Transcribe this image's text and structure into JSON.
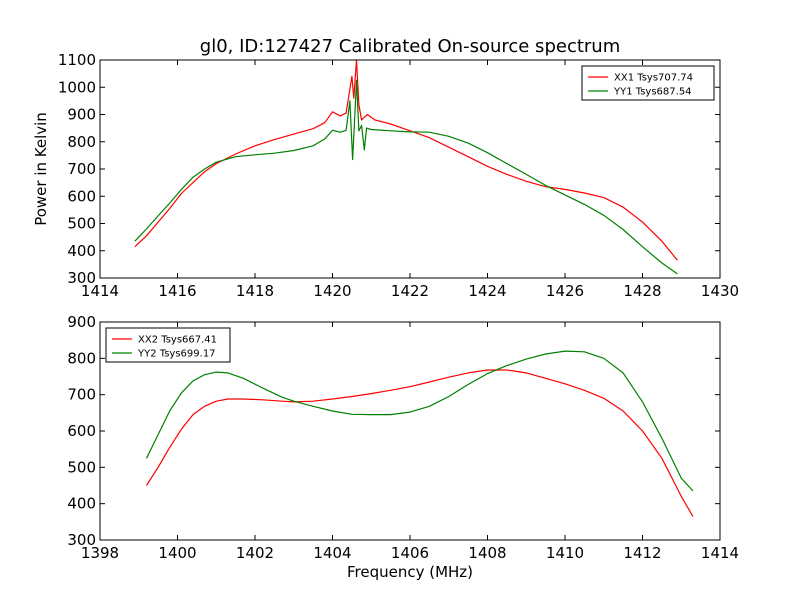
{
  "colors": {
    "red": "#ff0000",
    "green": "#008000",
    "frame": "#000000",
    "background": "#ffffff"
  },
  "chart_data": [
    {
      "type": "line",
      "title": "gl0, ID:127427 Calibrated On-source spectrum",
      "xlabel": "",
      "ylabel": "Power in Kelvin",
      "xlim": [
        1414,
        1430
      ],
      "ylim": [
        300,
        1100
      ],
      "xticks": [
        1414,
        1416,
        1418,
        1420,
        1422,
        1424,
        1426,
        1428,
        1430
      ],
      "yticks": [
        300,
        400,
        500,
        600,
        700,
        800,
        900,
        1000,
        1100
      ],
      "grid": false,
      "legend_position": "upper-right",
      "series": [
        {
          "name": "XX1 Tsys707.74",
          "color": "#ff0000",
          "points": [
            [
              1414.9,
              415
            ],
            [
              1415.2,
              455
            ],
            [
              1415.5,
              505
            ],
            [
              1415.8,
              555
            ],
            [
              1416.1,
              610
            ],
            [
              1416.4,
              650
            ],
            [
              1416.7,
              690
            ],
            [
              1417.0,
              720
            ],
            [
              1417.5,
              755
            ],
            [
              1418.0,
              785
            ],
            [
              1418.5,
              808
            ],
            [
              1419.0,
              828
            ],
            [
              1419.5,
              848
            ],
            [
              1419.8,
              870
            ],
            [
              1420.0,
              910
            ],
            [
              1420.2,
              895
            ],
            [
              1420.35,
              905
            ],
            [
              1420.5,
              1040
            ],
            [
              1420.55,
              960
            ],
            [
              1420.62,
              1100
            ],
            [
              1420.68,
              935
            ],
            [
              1420.75,
              880
            ],
            [
              1420.82,
              890
            ],
            [
              1420.9,
              900
            ],
            [
              1421.1,
              880
            ],
            [
              1421.5,
              865
            ],
            [
              1422.0,
              840
            ],
            [
              1422.5,
              815
            ],
            [
              1423.0,
              780
            ],
            [
              1423.5,
              745
            ],
            [
              1424.0,
              710
            ],
            [
              1424.5,
              680
            ],
            [
              1425.0,
              655
            ],
            [
              1425.5,
              635
            ],
            [
              1426.0,
              625
            ],
            [
              1426.5,
              612
            ],
            [
              1427.0,
              595
            ],
            [
              1427.5,
              560
            ],
            [
              1428.0,
              505
            ],
            [
              1428.5,
              435
            ],
            [
              1428.9,
              365
            ]
          ]
        },
        {
          "name": "YY1 Tsys687.54",
          "color": "#008000",
          "points": [
            [
              1414.9,
              435
            ],
            [
              1415.2,
              480
            ],
            [
              1415.5,
              528
            ],
            [
              1415.8,
              575
            ],
            [
              1416.1,
              625
            ],
            [
              1416.4,
              670
            ],
            [
              1416.7,
              700
            ],
            [
              1417.0,
              725
            ],
            [
              1417.5,
              745
            ],
            [
              1418.0,
              752
            ],
            [
              1418.5,
              758
            ],
            [
              1419.0,
              768
            ],
            [
              1419.5,
              785
            ],
            [
              1419.8,
              810
            ],
            [
              1420.0,
              842
            ],
            [
              1420.2,
              835
            ],
            [
              1420.35,
              842
            ],
            [
              1420.45,
              950
            ],
            [
              1420.52,
              735
            ],
            [
              1420.57,
              880
            ],
            [
              1420.62,
              1025
            ],
            [
              1420.68,
              840
            ],
            [
              1420.75,
              860
            ],
            [
              1420.82,
              770
            ],
            [
              1420.88,
              850
            ],
            [
              1421.0,
              845
            ],
            [
              1421.5,
              840
            ],
            [
              1422.0,
              836
            ],
            [
              1422.5,
              835
            ],
            [
              1423.0,
              820
            ],
            [
              1423.5,
              795
            ],
            [
              1424.0,
              760
            ],
            [
              1424.5,
              720
            ],
            [
              1425.0,
              680
            ],
            [
              1425.5,
              640
            ],
            [
              1426.0,
              605
            ],
            [
              1426.5,
              570
            ],
            [
              1427.0,
              530
            ],
            [
              1427.5,
              478
            ],
            [
              1428.0,
              415
            ],
            [
              1428.5,
              355
            ],
            [
              1428.9,
              315
            ]
          ]
        }
      ]
    },
    {
      "type": "line",
      "title": "",
      "xlabel": "Frequency (MHz)",
      "ylabel": "",
      "xlim": [
        1398,
        1414
      ],
      "ylim": [
        300,
        900
      ],
      "xticks": [
        1398,
        1400,
        1402,
        1404,
        1406,
        1408,
        1410,
        1412,
        1414
      ],
      "yticks": [
        300,
        400,
        500,
        600,
        700,
        800,
        900
      ],
      "grid": false,
      "legend_position": "upper-left",
      "series": [
        {
          "name": "XX2 Tsys667.41",
          "color": "#ff0000",
          "points": [
            [
              1399.2,
              450
            ],
            [
              1399.5,
              500
            ],
            [
              1399.8,
              555
            ],
            [
              1400.1,
              605
            ],
            [
              1400.4,
              645
            ],
            [
              1400.7,
              668
            ],
            [
              1401.0,
              682
            ],
            [
              1401.3,
              688
            ],
            [
              1401.7,
              688
            ],
            [
              1402.2,
              686
            ],
            [
              1402.7,
              682
            ],
            [
              1403.0,
              680
            ],
            [
              1403.5,
              682
            ],
            [
              1404.0,
              688
            ],
            [
              1404.5,
              695
            ],
            [
              1405.0,
              703
            ],
            [
              1405.5,
              712
            ],
            [
              1406.0,
              722
            ],
            [
              1406.5,
              735
            ],
            [
              1407.0,
              748
            ],
            [
              1407.5,
              760
            ],
            [
              1408.0,
              768
            ],
            [
              1408.5,
              768
            ],
            [
              1409.0,
              760
            ],
            [
              1409.5,
              745
            ],
            [
              1410.0,
              730
            ],
            [
              1410.5,
              712
            ],
            [
              1411.0,
              690
            ],
            [
              1411.5,
              655
            ],
            [
              1412.0,
              600
            ],
            [
              1412.5,
              525
            ],
            [
              1413.0,
              420
            ],
            [
              1413.3,
              365
            ]
          ]
        },
        {
          "name": "YY2 Tsys699.17",
          "color": "#008000",
          "points": [
            [
              1399.2,
              525
            ],
            [
              1399.5,
              590
            ],
            [
              1399.8,
              655
            ],
            [
              1400.1,
              705
            ],
            [
              1400.4,
              738
            ],
            [
              1400.7,
              755
            ],
            [
              1401.0,
              762
            ],
            [
              1401.3,
              760
            ],
            [
              1401.7,
              745
            ],
            [
              1402.2,
              718
            ],
            [
              1402.7,
              693
            ],
            [
              1403.0,
              682
            ],
            [
              1403.5,
              668
            ],
            [
              1404.0,
              655
            ],
            [
              1404.5,
              646
            ],
            [
              1405.0,
              645
            ],
            [
              1405.5,
              645
            ],
            [
              1406.0,
              652
            ],
            [
              1406.5,
              668
            ],
            [
              1407.0,
              695
            ],
            [
              1407.5,
              728
            ],
            [
              1408.0,
              758
            ],
            [
              1408.5,
              780
            ],
            [
              1409.0,
              798
            ],
            [
              1409.5,
              812
            ],
            [
              1410.0,
              820
            ],
            [
              1410.5,
              818
            ],
            [
              1411.0,
              800
            ],
            [
              1411.5,
              760
            ],
            [
              1412.0,
              680
            ],
            [
              1412.5,
              580
            ],
            [
              1413.0,
              470
            ],
            [
              1413.3,
              435
            ]
          ]
        }
      ]
    }
  ]
}
